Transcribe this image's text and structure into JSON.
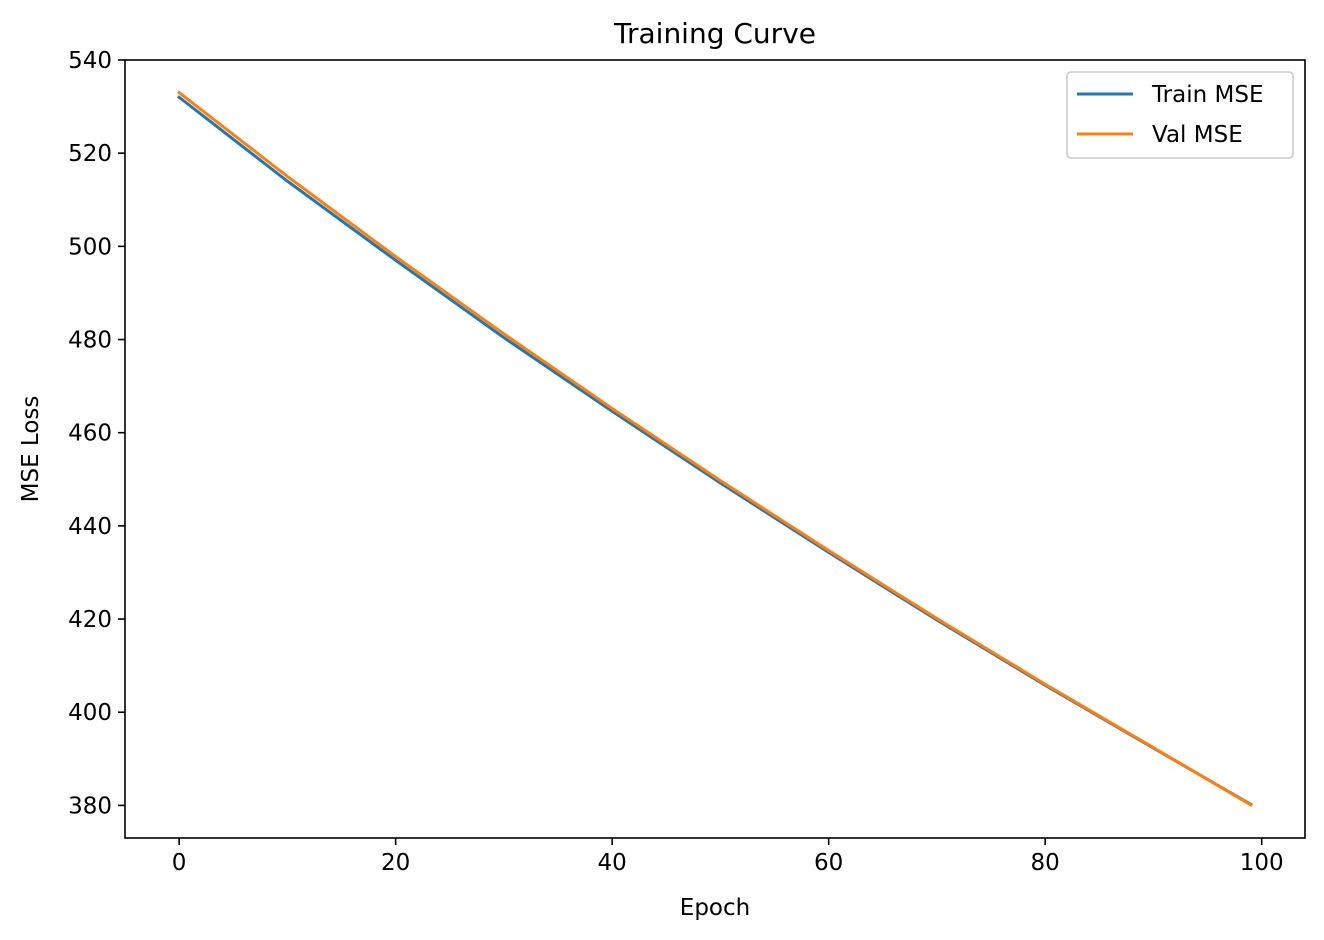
{
  "chart_data": {
    "type": "line",
    "title": "Training Curve",
    "xlabel": "Epoch",
    "ylabel": "MSE Loss",
    "xlim": [
      -5,
      104
    ],
    "ylim": [
      373,
      540
    ],
    "xticks": [
      0,
      20,
      40,
      60,
      80,
      100
    ],
    "yticks": [
      380,
      400,
      420,
      440,
      460,
      480,
      500,
      520,
      540
    ],
    "grid": false,
    "legend_position": "top-right",
    "series": [
      {
        "name": "Train MSE",
        "color": "#1f77b4",
        "x": [
          0,
          10,
          20,
          30,
          40,
          50,
          60,
          70,
          80,
          90,
          99
        ],
        "y": [
          532.0,
          514.0,
          497.0,
          480.4,
          464.6,
          449.2,
          434.3,
          419.8,
          405.8,
          392.3,
          380.2
        ]
      },
      {
        "name": "Val MSE",
        "color": "#ff7f0e",
        "x": [
          0,
          10,
          20,
          30,
          40,
          50,
          60,
          70,
          80,
          90,
          99
        ],
        "y": [
          533.0,
          515.0,
          497.8,
          481.2,
          465.2,
          449.7,
          434.7,
          420.1,
          406.0,
          392.4,
          380.1
        ]
      }
    ]
  }
}
